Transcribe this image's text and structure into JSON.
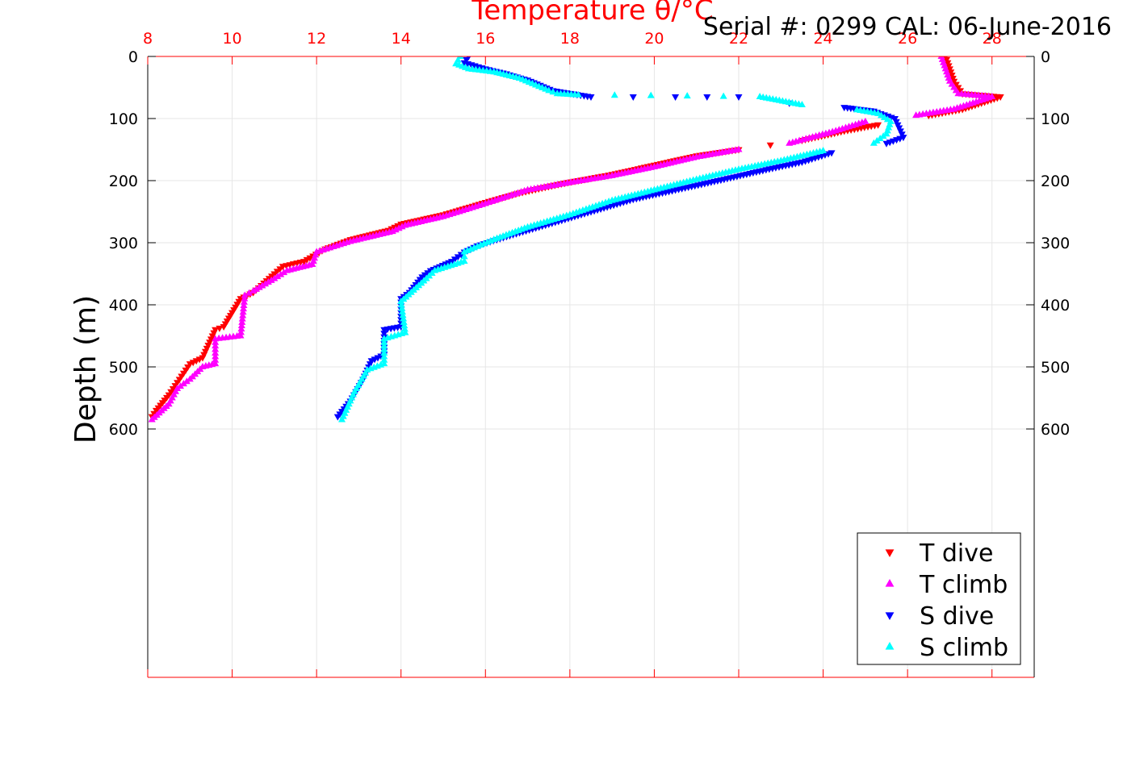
{
  "serial_label": "Serial #: 0299 CAL: 06-June-2016",
  "chart_data": {
    "type": "scatter",
    "title": "Temperature θ/°C",
    "xlabel": "Temperature θ/°C",
    "ylabel": "Depth (m)",
    "xlim": [
      8,
      29
    ],
    "ylim": [
      0,
      1000
    ],
    "y_reversed": true,
    "x_ticks": [
      8,
      10,
      12,
      14,
      16,
      18,
      20,
      22,
      24,
      26,
      28
    ],
    "y_ticks": [
      0,
      100,
      200,
      300,
      400,
      500,
      600
    ],
    "grid": true,
    "legend_position": "bottom-right",
    "colors": {
      "axis_top": "#ff0000",
      "axis_other": "#000000",
      "grid": "#e6e6e6"
    },
    "series": [
      {
        "name": "T dive",
        "marker": "triangle-down",
        "color": "#ff0000",
        "points": [
          [
            26.9,
            0
          ],
          [
            27.0,
            20
          ],
          [
            27.1,
            40
          ],
          [
            27.3,
            60
          ],
          [
            28.2,
            65
          ],
          [
            27.3,
            85
          ],
          [
            26.5,
            95
          ],
          [
            25.3,
            110
          ],
          [
            24.5,
            120
          ],
          [
            23.5,
            135
          ],
          [
            22.0,
            150
          ],
          [
            21.0,
            160
          ],
          [
            20.0,
            175
          ],
          [
            19.0,
            190
          ],
          [
            18.2,
            200
          ],
          [
            17.8,
            205
          ],
          [
            16.8,
            220
          ],
          [
            16.0,
            235
          ],
          [
            15.0,
            255
          ],
          [
            14.0,
            270
          ],
          [
            13.7,
            280
          ],
          [
            12.8,
            295
          ],
          [
            12.2,
            310
          ],
          [
            11.7,
            330
          ],
          [
            11.2,
            338
          ],
          [
            11.0,
            350
          ],
          [
            10.5,
            380
          ],
          [
            10.2,
            390
          ],
          [
            9.8,
            435
          ],
          [
            9.6,
            440
          ],
          [
            9.3,
            485
          ],
          [
            9.0,
            495
          ],
          [
            8.8,
            515
          ],
          [
            8.5,
            545
          ],
          [
            8.2,
            570
          ],
          [
            8.1,
            580
          ]
        ]
      },
      {
        "name": "T climb",
        "marker": "triangle-up",
        "color": "#ff00ff",
        "points": [
          [
            26.8,
            0
          ],
          [
            26.9,
            20
          ],
          [
            27.0,
            40
          ],
          [
            27.2,
            60
          ],
          [
            28.0,
            65
          ],
          [
            27.1,
            85
          ],
          [
            26.2,
            95
          ],
          [
            25.0,
            105
          ],
          [
            24.3,
            120
          ],
          [
            23.2,
            140
          ],
          [
            22.0,
            150
          ],
          [
            21.0,
            162
          ],
          [
            20.0,
            178
          ],
          [
            19.0,
            192
          ],
          [
            18.1,
            202
          ],
          [
            17.0,
            215
          ],
          [
            16.0,
            237
          ],
          [
            15.0,
            258
          ],
          [
            14.1,
            272
          ],
          [
            13.8,
            282
          ],
          [
            12.8,
            298
          ],
          [
            12.0,
            315
          ],
          [
            11.9,
            335
          ],
          [
            11.3,
            345
          ],
          [
            11.0,
            358
          ],
          [
            10.5,
            378
          ],
          [
            10.3,
            385
          ],
          [
            10.2,
            450
          ],
          [
            9.6,
            455
          ],
          [
            9.6,
            495
          ],
          [
            9.3,
            500
          ],
          [
            9.0,
            520
          ],
          [
            8.7,
            535
          ],
          [
            8.5,
            560
          ],
          [
            8.1,
            585
          ]
        ]
      },
      {
        "name": "S dive",
        "marker": "triangle-down",
        "color": "#0000ff",
        "points": [
          [
            15.6,
            0
          ],
          [
            15.5,
            10
          ],
          [
            16.0,
            20
          ],
          [
            16.5,
            28
          ],
          [
            17.0,
            38
          ],
          [
            17.6,
            55
          ],
          [
            18.5,
            65
          ],
          [
            20.5,
            65
          ],
          [
            22.0,
            65
          ],
          [
            23.2,
            75
          ],
          [
            24.5,
            82
          ],
          [
            25.2,
            88
          ],
          [
            25.7,
            100
          ],
          [
            25.8,
            115
          ],
          [
            25.9,
            130
          ],
          [
            25.5,
            140
          ],
          [
            24.2,
            155
          ],
          [
            23.5,
            170
          ],
          [
            22.8,
            180
          ],
          [
            21.5,
            200
          ],
          [
            20.5,
            215
          ],
          [
            19.5,
            230
          ],
          [
            18.5,
            250
          ],
          [
            17.5,
            270
          ],
          [
            16.5,
            290
          ],
          [
            15.8,
            305
          ],
          [
            15.5,
            315
          ],
          [
            15.2,
            330
          ],
          [
            14.7,
            345
          ],
          [
            14.5,
            355
          ],
          [
            14.2,
            380
          ],
          [
            14.0,
            390
          ],
          [
            14.0,
            435
          ],
          [
            13.6,
            440
          ],
          [
            13.6,
            480
          ],
          [
            13.3,
            490
          ],
          [
            13.1,
            520
          ],
          [
            12.8,
            555
          ],
          [
            12.5,
            580
          ]
        ]
      },
      {
        "name": "S climb",
        "marker": "triangle-up",
        "color": "#00ffff",
        "points": [
          [
            15.4,
            0
          ],
          [
            15.3,
            12
          ],
          [
            15.6,
            20
          ],
          [
            16.2,
            25
          ],
          [
            16.8,
            35
          ],
          [
            17.5,
            55
          ],
          [
            17.7,
            60
          ],
          [
            18.2,
            62
          ],
          [
            22.5,
            65
          ],
          [
            23.5,
            78
          ],
          [
            24.8,
            86
          ],
          [
            25.3,
            92
          ],
          [
            25.6,
            105
          ],
          [
            25.5,
            125
          ],
          [
            25.2,
            140
          ],
          [
            24.0,
            152
          ],
          [
            23.0,
            168
          ],
          [
            22.0,
            182
          ],
          [
            21.0,
            198
          ],
          [
            20.0,
            215
          ],
          [
            19.0,
            232
          ],
          [
            18.0,
            255
          ],
          [
            17.0,
            275
          ],
          [
            16.2,
            295
          ],
          [
            15.5,
            315
          ],
          [
            15.5,
            330
          ],
          [
            14.8,
            345
          ],
          [
            14.6,
            358
          ],
          [
            14.0,
            395
          ],
          [
            14.1,
            445
          ],
          [
            13.6,
            455
          ],
          [
            13.6,
            495
          ],
          [
            13.2,
            505
          ],
          [
            12.9,
            540
          ],
          [
            12.6,
            585
          ]
        ]
      }
    ]
  }
}
